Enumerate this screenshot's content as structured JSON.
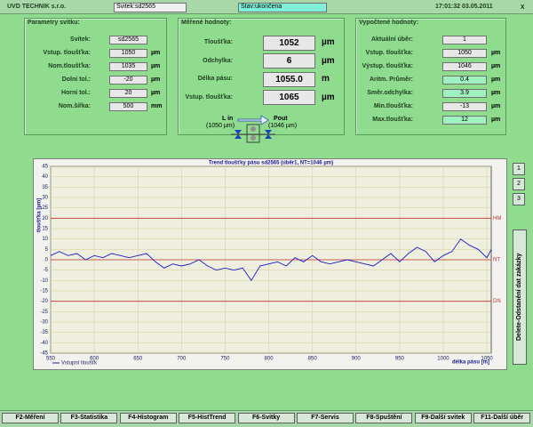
{
  "header": {
    "company": "UVD TECHNIK s.r.o.",
    "coil": "Svitek:sd2565",
    "status": "Stav:ukončena",
    "datetime": "17:01:32 03.05.2011",
    "close": "x"
  },
  "panels": [
    {
      "title": "Parametry svitku:",
      "rows": [
        {
          "label": "Svitek:",
          "value": "sd2565"
        },
        {
          "label": "Vstup. tloušťka:",
          "value": "1050",
          "unit": "µm"
        },
        {
          "label": "Nom.tloušťka:",
          "value": "1035",
          "unit": "µm"
        },
        {
          "label": "Dolní tol.:",
          "value": "-20",
          "unit": "µm"
        },
        {
          "label": "Horní tol.:",
          "value": "20",
          "unit": "µm"
        },
        {
          "label": "Nom.šířka:",
          "value": "500",
          "unit": "mm"
        }
      ]
    },
    {
      "title": "Měřené hodnoty:",
      "rows": [
        {
          "label": "Tloušťka:",
          "value": "1052",
          "unit": "µm"
        },
        {
          "label": "Odchylka:",
          "value": "6",
          "unit": "µm"
        },
        {
          "label": "Délka pásu:",
          "value": "1055.0",
          "unit": "m"
        },
        {
          "label": "Vstup. tloušťka:",
          "value": "1065",
          "unit": "µm"
        }
      ]
    },
    {
      "title": "Vypočtené hodnoty:",
      "rows": [
        {
          "label": "Aktuální úběr:",
          "value": "1"
        },
        {
          "label": "Vstup. tloušťka:",
          "value": "1050",
          "unit": "µm"
        },
        {
          "label": "Výstup. tloušťka:",
          "value": "1046",
          "unit": "µm"
        },
        {
          "label": "Aritm. Průměr:",
          "value": "0.4",
          "unit": "µm",
          "color": "#a0f0c0"
        },
        {
          "label": "Směr.odchylka:",
          "value": "3.9",
          "unit": "µm",
          "color": "#a0f0c0"
        },
        {
          "label": "Min.tloušťka:",
          "value": "-13",
          "unit": "µm"
        },
        {
          "label": "Max.tloušťka:",
          "value": "12",
          "unit": "µm",
          "color": "#a0f0c0"
        }
      ]
    }
  ],
  "mill": {
    "input": "L in",
    "input_value": "(1050 µm)",
    "output": "Pout",
    "output_value": "(1046 µm)"
  },
  "chart_data": {
    "type": "line",
    "title": "Trend tloušťky pásu  sd2565  (úběr1, NT=1046 µm)",
    "x_label": "délka pásu [m]",
    "y_label": "tloušťka [µm]",
    "x": [
      550,
      560,
      570,
      580,
      590,
      600,
      610,
      620,
      630,
      640,
      650,
      660,
      670,
      680,
      690,
      700,
      710,
      720,
      730,
      740,
      750,
      760,
      770,
      780,
      790,
      800,
      810,
      820,
      830,
      840,
      850,
      860,
      870,
      880,
      890,
      900,
      910,
      920,
      930,
      940,
      950,
      960,
      970,
      980,
      990,
      1000,
      1010,
      1020,
      1030,
      1040,
      1050,
      1055
    ],
    "series": [
      {
        "name": "Vstupní tloušťk",
        "color": "#1a1acc",
        "values": [
          2,
          4,
          2,
          3,
          0,
          2,
          1,
          3,
          2,
          1,
          2,
          3,
          -1,
          -4,
          -2,
          -3,
          -2,
          0,
          -3,
          -5,
          -4,
          -5,
          -4,
          -10,
          -3,
          -2,
          -1,
          -3,
          1,
          -1,
          2,
          -1,
          -2,
          -1,
          0,
          -1,
          -2,
          -3,
          0,
          3,
          -1,
          3,
          6,
          4,
          -1,
          2,
          4,
          10,
          7,
          5,
          1,
          5
        ]
      }
    ],
    "reference_lines": [
      {
        "label": "HM",
        "value": 20,
        "color": "#c03030"
      },
      {
        "label": "NT",
        "value": 0,
        "color": "#c03030"
      },
      {
        "label": "DN",
        "value": -20,
        "color": "#c03030"
      }
    ],
    "xlim": [
      550,
      1055
    ],
    "ylim": [
      -45,
      45
    ],
    "xticks": [
      550,
      600,
      650,
      700,
      750,
      800,
      850,
      900,
      950,
      1000,
      1050
    ],
    "yticks": [
      45,
      40,
      35,
      30,
      25,
      20,
      15,
      10,
      5,
      0,
      -5,
      -10,
      -15,
      -20,
      -25,
      -30,
      -35,
      -40,
      -45
    ],
    "grid": true
  },
  "side_buttons": [
    "1",
    "2",
    "3"
  ],
  "delete_button": "Delete-Odstanění dat zakázky",
  "function_keys": [
    "F2-Měření",
    "F3-Statistika",
    "F4-Histogram",
    "F5-HistTrend",
    "F6-Svitky",
    "F7-Servis",
    "F8-Spuštění",
    "F9-Další svitek",
    "F11-Další úběr"
  ]
}
